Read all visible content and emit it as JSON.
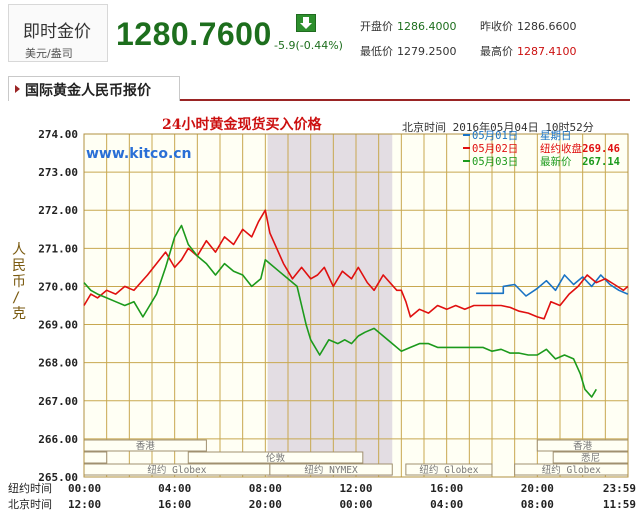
{
  "quote": {
    "label": "即时金价",
    "unit": "美元/盎司",
    "price": "1280.7600",
    "change": "-5.9(-0.44%)",
    "down_icon": "down-arrow-icon",
    "open_label": "开盘价",
    "open_value": "1286.4000",
    "prev_label": "昨收价",
    "prev_value": "1286.6600",
    "low_label": "最低价",
    "low_value": "1279.2500",
    "high_label": "最高价",
    "high_value": "1287.4100",
    "colors": {
      "up": "#1d6e1d",
      "down": "#cc1010"
    }
  },
  "section": {
    "title": "国际黄金人民币报价"
  },
  "chart_data": {
    "type": "line",
    "title": "24小时黄金现货买入价格",
    "timestamp": "北京时间  2016年05月04日 10时52分",
    "watermark": "www.kitco.cn",
    "ylabel": "人民币/克",
    "ylim": [
      265,
      274
    ],
    "y_ticks": [
      "274.00",
      "273.00",
      "272.00",
      "271.00",
      "270.00",
      "269.00",
      "268.00",
      "267.00",
      "266.00",
      "265.00"
    ],
    "x_ticks_ny": [
      "00:00",
      "04:00",
      "08:00",
      "12:00",
      "16:00",
      "20:00",
      "23:59"
    ],
    "x_ticks_bj": [
      "12:00",
      "16:00",
      "20:00",
      "00:00",
      "04:00",
      "08:00",
      "11:59"
    ],
    "x_row_labels": [
      "纽约时间",
      "北京时间"
    ],
    "shaded_session": "纽约 NYMEX",
    "sessions": {
      "hongkong": "香港",
      "london": "伦敦",
      "globex": "纽约 Globex",
      "sydney": "悉尼"
    },
    "legend": [
      {
        "date": "05月01日",
        "label": "星期日",
        "value": "",
        "color": "#1a73c4"
      },
      {
        "date": "05月02日",
        "label": "纽约收盘",
        "value": "269.46",
        "color": "#e01010"
      },
      {
        "date": "05月03日",
        "label": "最新价",
        "value": "267.14",
        "color": "#1c9a1c"
      }
    ],
    "series": [
      {
        "name": "05月01日",
        "color": "#1a73c4",
        "x": [
          17.3,
          18.5,
          18.5,
          19.0,
          19.5,
          20.0,
          20.4,
          20.8,
          21.2,
          21.6,
          22.0,
          22.4,
          22.8,
          23.2,
          23.6,
          23.99
        ],
        "y": [
          269.82,
          269.82,
          270.0,
          270.05,
          269.75,
          269.95,
          270.15,
          269.9,
          270.3,
          270.05,
          270.25,
          270.0,
          270.3,
          270.05,
          269.9,
          269.8
        ]
      },
      {
        "name": "05月02日",
        "color": "#e01010",
        "x": [
          0.0,
          0.3,
          0.6,
          1.0,
          1.4,
          1.8,
          2.2,
          2.5,
          2.8,
          3.2,
          3.6,
          4.0,
          4.3,
          4.6,
          5.0,
          5.4,
          5.8,
          6.2,
          6.6,
          7.0,
          7.4,
          7.7,
          8.0,
          8.2,
          8.5,
          8.8,
          9.2,
          9.6,
          10.0,
          10.3,
          10.6,
          11.0,
          11.4,
          11.8,
          12.1,
          12.5,
          12.8,
          13.2,
          13.8,
          14.0,
          14.2,
          14.4,
          14.8,
          15.2,
          15.6,
          16.0,
          16.4,
          16.8,
          17.2,
          17.6,
          18.0,
          18.4,
          18.8,
          19.2,
          19.6,
          20.0,
          20.3,
          20.6,
          21.0,
          21.4,
          21.8,
          22.2,
          22.6,
          23.0,
          23.4,
          23.8,
          23.99
        ],
        "y": [
          269.5,
          269.8,
          269.7,
          269.9,
          269.8,
          270.0,
          269.9,
          270.1,
          270.3,
          270.6,
          270.9,
          270.5,
          270.7,
          271.0,
          270.8,
          271.2,
          270.9,
          271.3,
          271.1,
          271.5,
          271.3,
          271.7,
          272.0,
          271.4,
          271.0,
          270.6,
          270.2,
          270.5,
          270.2,
          270.3,
          270.5,
          270.0,
          270.4,
          270.2,
          270.5,
          270.1,
          269.9,
          270.3,
          269.9,
          269.9,
          269.6,
          269.2,
          269.4,
          269.3,
          269.5,
          269.4,
          269.5,
          269.4,
          269.5,
          269.5,
          269.5,
          269.5,
          269.45,
          269.35,
          269.3,
          269.2,
          269.15,
          269.6,
          269.5,
          269.8,
          270.0,
          270.3,
          270.1,
          270.2,
          270.05,
          269.9,
          270.0
        ]
      },
      {
        "name": "05月03日",
        "color": "#1c9a1c",
        "x": [
          0.0,
          0.3,
          0.6,
          1.0,
          1.4,
          1.8,
          2.2,
          2.6,
          2.9,
          3.2,
          3.6,
          4.0,
          4.3,
          4.6,
          5.0,
          5.4,
          5.8,
          6.2,
          6.6,
          7.0,
          7.4,
          7.8,
          8.0,
          8.2,
          8.6,
          9.0,
          9.4,
          9.6,
          9.8,
          10.0,
          10.4,
          10.8,
          11.2,
          11.5,
          11.8,
          12.1,
          12.4,
          12.8,
          13.2,
          13.6,
          14.0,
          14.4,
          14.8,
          15.2,
          15.6,
          16.0,
          16.4,
          16.8,
          17.2,
          17.6,
          18.0,
          18.4,
          18.8,
          19.2,
          19.6,
          20.0,
          20.4,
          20.8,
          21.2,
          21.6,
          21.9,
          22.1,
          22.4,
          22.6
        ],
        "y": [
          270.1,
          269.9,
          269.8,
          269.7,
          269.6,
          269.5,
          269.6,
          269.2,
          269.5,
          269.8,
          270.5,
          271.3,
          271.6,
          271.1,
          270.8,
          270.6,
          270.3,
          270.6,
          270.4,
          270.3,
          270.0,
          270.2,
          270.7,
          270.6,
          270.4,
          270.2,
          270.0,
          269.5,
          269.0,
          268.6,
          268.2,
          268.6,
          268.5,
          268.6,
          268.5,
          268.7,
          268.8,
          268.9,
          268.7,
          268.5,
          268.3,
          268.4,
          268.5,
          268.5,
          268.4,
          268.4,
          268.4,
          268.4,
          268.4,
          268.4,
          268.3,
          268.35,
          268.25,
          268.25,
          268.2,
          268.2,
          268.35,
          268.1,
          268.2,
          268.1,
          267.7,
          267.3,
          267.1,
          267.3
        ]
      }
    ]
  }
}
